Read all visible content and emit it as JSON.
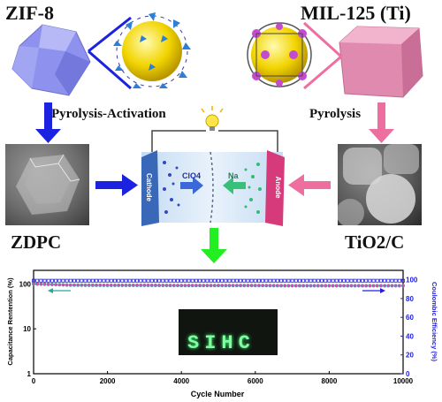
{
  "titles": {
    "left_mof": "ZIF-8",
    "right_mof": "MIL-125 (Ti)",
    "left_product": "ZDPC",
    "right_product": "TiO2/C"
  },
  "process": {
    "left_step": "Pyrolysis-Activation",
    "right_step": "Pyrolysis"
  },
  "cell": {
    "cathode": "Cathode",
    "anode": "Anode",
    "anion": "ClO4",
    "cation": "Na"
  },
  "photo_text": "SIHC",
  "colors": {
    "zif_crystal": "#9b9ef2",
    "mil_crystal": "#e38ab0",
    "blue_arrow": "#1b22e0",
    "pink_arrow": "#ee6ea0",
    "green_arrow": "#22ee22",
    "retention_series": "#d94ab8",
    "efficiency_series": "#2222dd"
  },
  "chart_data": {
    "type": "scatter",
    "xlabel": "Cycle Number",
    "ylabel_left": "Capacitance Rentention (%)",
    "ylabel_right": "Coulombic Efficiency (%)",
    "x_ticks": [
      "0",
      "2000",
      "4000",
      "6000",
      "8000",
      "10000"
    ],
    "y_left_ticks": [
      "1",
      "10",
      "100"
    ],
    "y_right_ticks": [
      "0",
      "20",
      "40",
      "60",
      "80",
      "100"
    ],
    "xlim": [
      0,
      10000
    ],
    "ylim_left": [
      1,
      200
    ],
    "ylim_right": [
      0,
      110
    ],
    "y_left_scale": "log",
    "series": [
      {
        "name": "Capacitance Retention",
        "axis": "left",
        "x": [
          0,
          1000,
          2000,
          3000,
          4000,
          5000,
          6000,
          7000,
          8000,
          10000
        ],
        "values": [
          100,
          94,
          93,
          93,
          92,
          92,
          92,
          91,
          91,
          91
        ]
      },
      {
        "name": "Coulombic Efficiency",
        "axis": "right",
        "x": [
          0,
          1000,
          2000,
          3000,
          4000,
          5000,
          6000,
          7000,
          8000,
          10000
        ],
        "values": [
          99,
          99,
          99,
          99,
          99,
          99,
          99,
          99,
          99,
          99
        ]
      }
    ]
  }
}
